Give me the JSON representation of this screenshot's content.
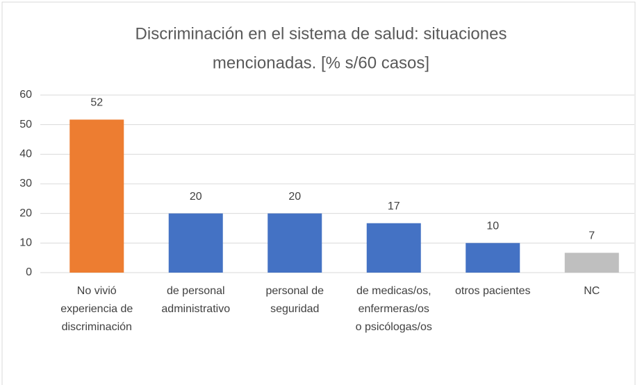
{
  "chart_data": {
    "type": "bar",
    "title": [
      "Discriminación en el sistema de salud: situaciones",
      "mencionadas. [% s/60 casos]"
    ],
    "categories": [
      "No vivió experiencia de discriminación",
      "de personal administrativo",
      "personal de seguridad",
      "de medicas/os, enfermeras/os o psicólogas/os",
      "otros pacientes",
      "NC"
    ],
    "values": [
      51.7,
      20,
      20,
      16.7,
      10,
      6.7
    ],
    "value_labels": [
      "52",
      "20",
      "20",
      "17",
      "10",
      "7"
    ],
    "colors": [
      "#ed7d31",
      "#4472c4",
      "#4472c4",
      "#4472c4",
      "#4472c4",
      "#bfbfbf"
    ],
    "ylim": [
      0,
      60
    ],
    "yticks": [
      0,
      10,
      20,
      30,
      40,
      50,
      60
    ],
    "grid": true
  }
}
